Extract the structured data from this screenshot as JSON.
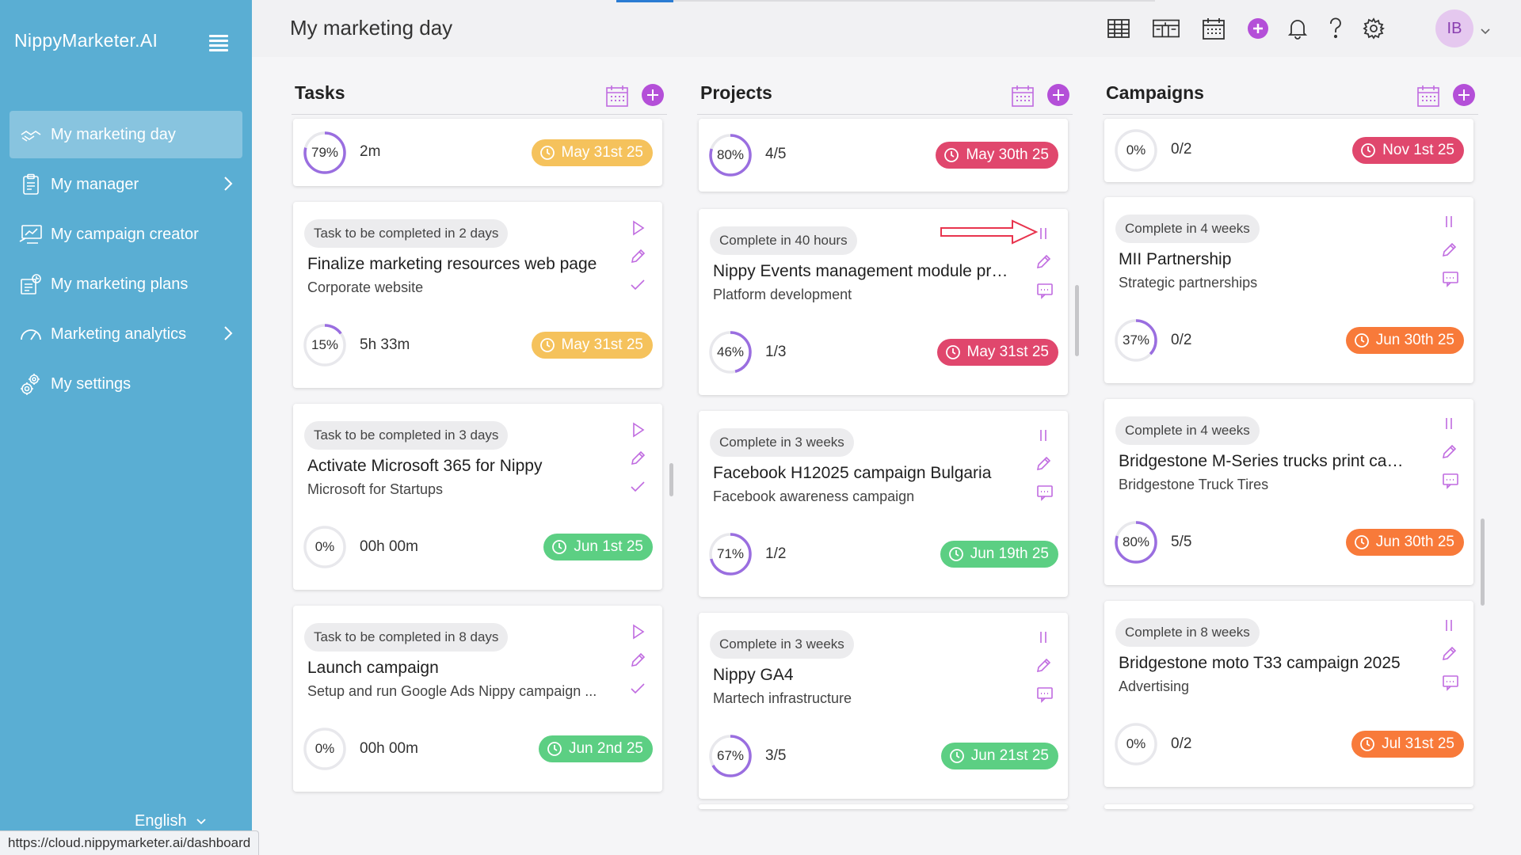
{
  "app": {
    "brand": "NippyMarketer.AI",
    "page_title": "My marketing day"
  },
  "sidebar": {
    "items": [
      {
        "label": "My marketing day",
        "icon": "handshake-icon",
        "active": true,
        "chevron": false
      },
      {
        "label": "My manager",
        "icon": "clipboard-icon",
        "active": false,
        "chevron": true
      },
      {
        "label": "My campaign creator",
        "icon": "monitor-chart-icon",
        "active": false,
        "chevron": false
      },
      {
        "label": "My marketing plans",
        "icon": "plans-icon",
        "active": false,
        "chevron": false
      },
      {
        "label": "Marketing analytics",
        "icon": "gauge-icon",
        "active": false,
        "chevron": true
      },
      {
        "label": "My settings",
        "icon": "gears-icon",
        "active": false,
        "chevron": false
      }
    ],
    "language": "English"
  },
  "status_url": "https://cloud.nippymarketer.ai/dashboard",
  "header": {
    "icons": [
      "table-view-icon",
      "board-view-icon",
      "calendar-icon",
      "add-icon",
      "bell-icon",
      "help-icon",
      "settings-icon"
    ],
    "avatar_initials": "IB"
  },
  "colors": {
    "sidebar": "#5aaed3",
    "accent": "#b44fd8",
    "due_yellow": "#f5c25c",
    "due_red": "#e0476d",
    "due_green": "#5ccf83",
    "due_orange": "#f87a3a"
  },
  "columns": {
    "tasks": {
      "title": "Tasks",
      "cards": [
        {
          "chip": "",
          "title": "",
          "subtitle": "",
          "percent": "79%",
          "percent_value": 79,
          "metric": "2m",
          "due": "May 31st 25",
          "due_color": "yellow",
          "partial": true
        },
        {
          "chip": "Task to be completed in 2 days",
          "title": "Finalize marketing resources web page",
          "subtitle": "Corporate website",
          "percent": "15%",
          "percent_value": 15,
          "metric": "5h 33m",
          "due": "May 31st 25",
          "due_color": "yellow"
        },
        {
          "chip": "Task to be completed in 3 days",
          "title": "Activate Microsoft 365 for Nippy",
          "subtitle": "Microsoft for Startups",
          "percent": "0%",
          "percent_value": 0,
          "metric": "00h 00m",
          "due": "Jun 1st 25",
          "due_color": "green"
        },
        {
          "chip": "Task to be completed in 8 days",
          "title": "Launch campaign",
          "subtitle": "Setup and run Google Ads Nippy campaign ...",
          "percent": "0%",
          "percent_value": 0,
          "metric": "00h 00m",
          "due": "Jun 2nd 25",
          "due_color": "green"
        }
      ]
    },
    "projects": {
      "title": "Projects",
      "cards": [
        {
          "chip": "",
          "title": "",
          "subtitle": "",
          "percent": "80%",
          "percent_value": 80,
          "metric": "4/5",
          "due": "May 30th 25",
          "due_color": "red",
          "partial": true
        },
        {
          "chip": "Complete in 40 hours",
          "title": "Nippy Events management module pro...",
          "subtitle": "Platform development",
          "percent": "46%",
          "percent_value": 46,
          "metric": "1/3",
          "due": "May 31st 25",
          "due_color": "red"
        },
        {
          "chip": "Complete in 3 weeks",
          "title": "Facebook H12025 campaign Bulgaria",
          "subtitle": "Facebook awareness campaign",
          "percent": "71%",
          "percent_value": 71,
          "metric": "1/2",
          "due": "Jun 19th 25",
          "due_color": "green"
        },
        {
          "chip": "Complete in 3 weeks",
          "title": "Nippy GA4",
          "subtitle": "Martech infrastructure",
          "percent": "67%",
          "percent_value": 67,
          "metric": "3/5",
          "due": "Jun 21st 25",
          "due_color": "green"
        }
      ]
    },
    "campaigns": {
      "title": "Campaigns",
      "cards": [
        {
          "chip": "",
          "title": "",
          "subtitle": "",
          "percent": "0%",
          "percent_value": 0,
          "metric": "0/2",
          "due": "Nov 1st 25",
          "due_color": "red",
          "partial": true
        },
        {
          "chip": "Complete in 4 weeks",
          "title": "MII Partnership",
          "subtitle": "Strategic partnerships",
          "percent": "37%",
          "percent_value": 37,
          "metric": "0/2",
          "due": "Jun 30th 25",
          "due_color": "orange"
        },
        {
          "chip": "Complete in 4 weeks",
          "title": "Bridgestone M-Series trucks print camp...",
          "subtitle": "Bridgestone Truck Tires",
          "percent": "80%",
          "percent_value": 80,
          "metric": "5/5",
          "due": "Jun 30th 25",
          "due_color": "orange"
        },
        {
          "chip": "Complete in 8 weeks",
          "title": "Bridgestone moto T33 campaign 2025",
          "subtitle": "Advertising",
          "percent": "0%",
          "percent_value": 0,
          "metric": "0/2",
          "due": "Jul 31st 25",
          "due_color": "orange"
        }
      ]
    }
  }
}
